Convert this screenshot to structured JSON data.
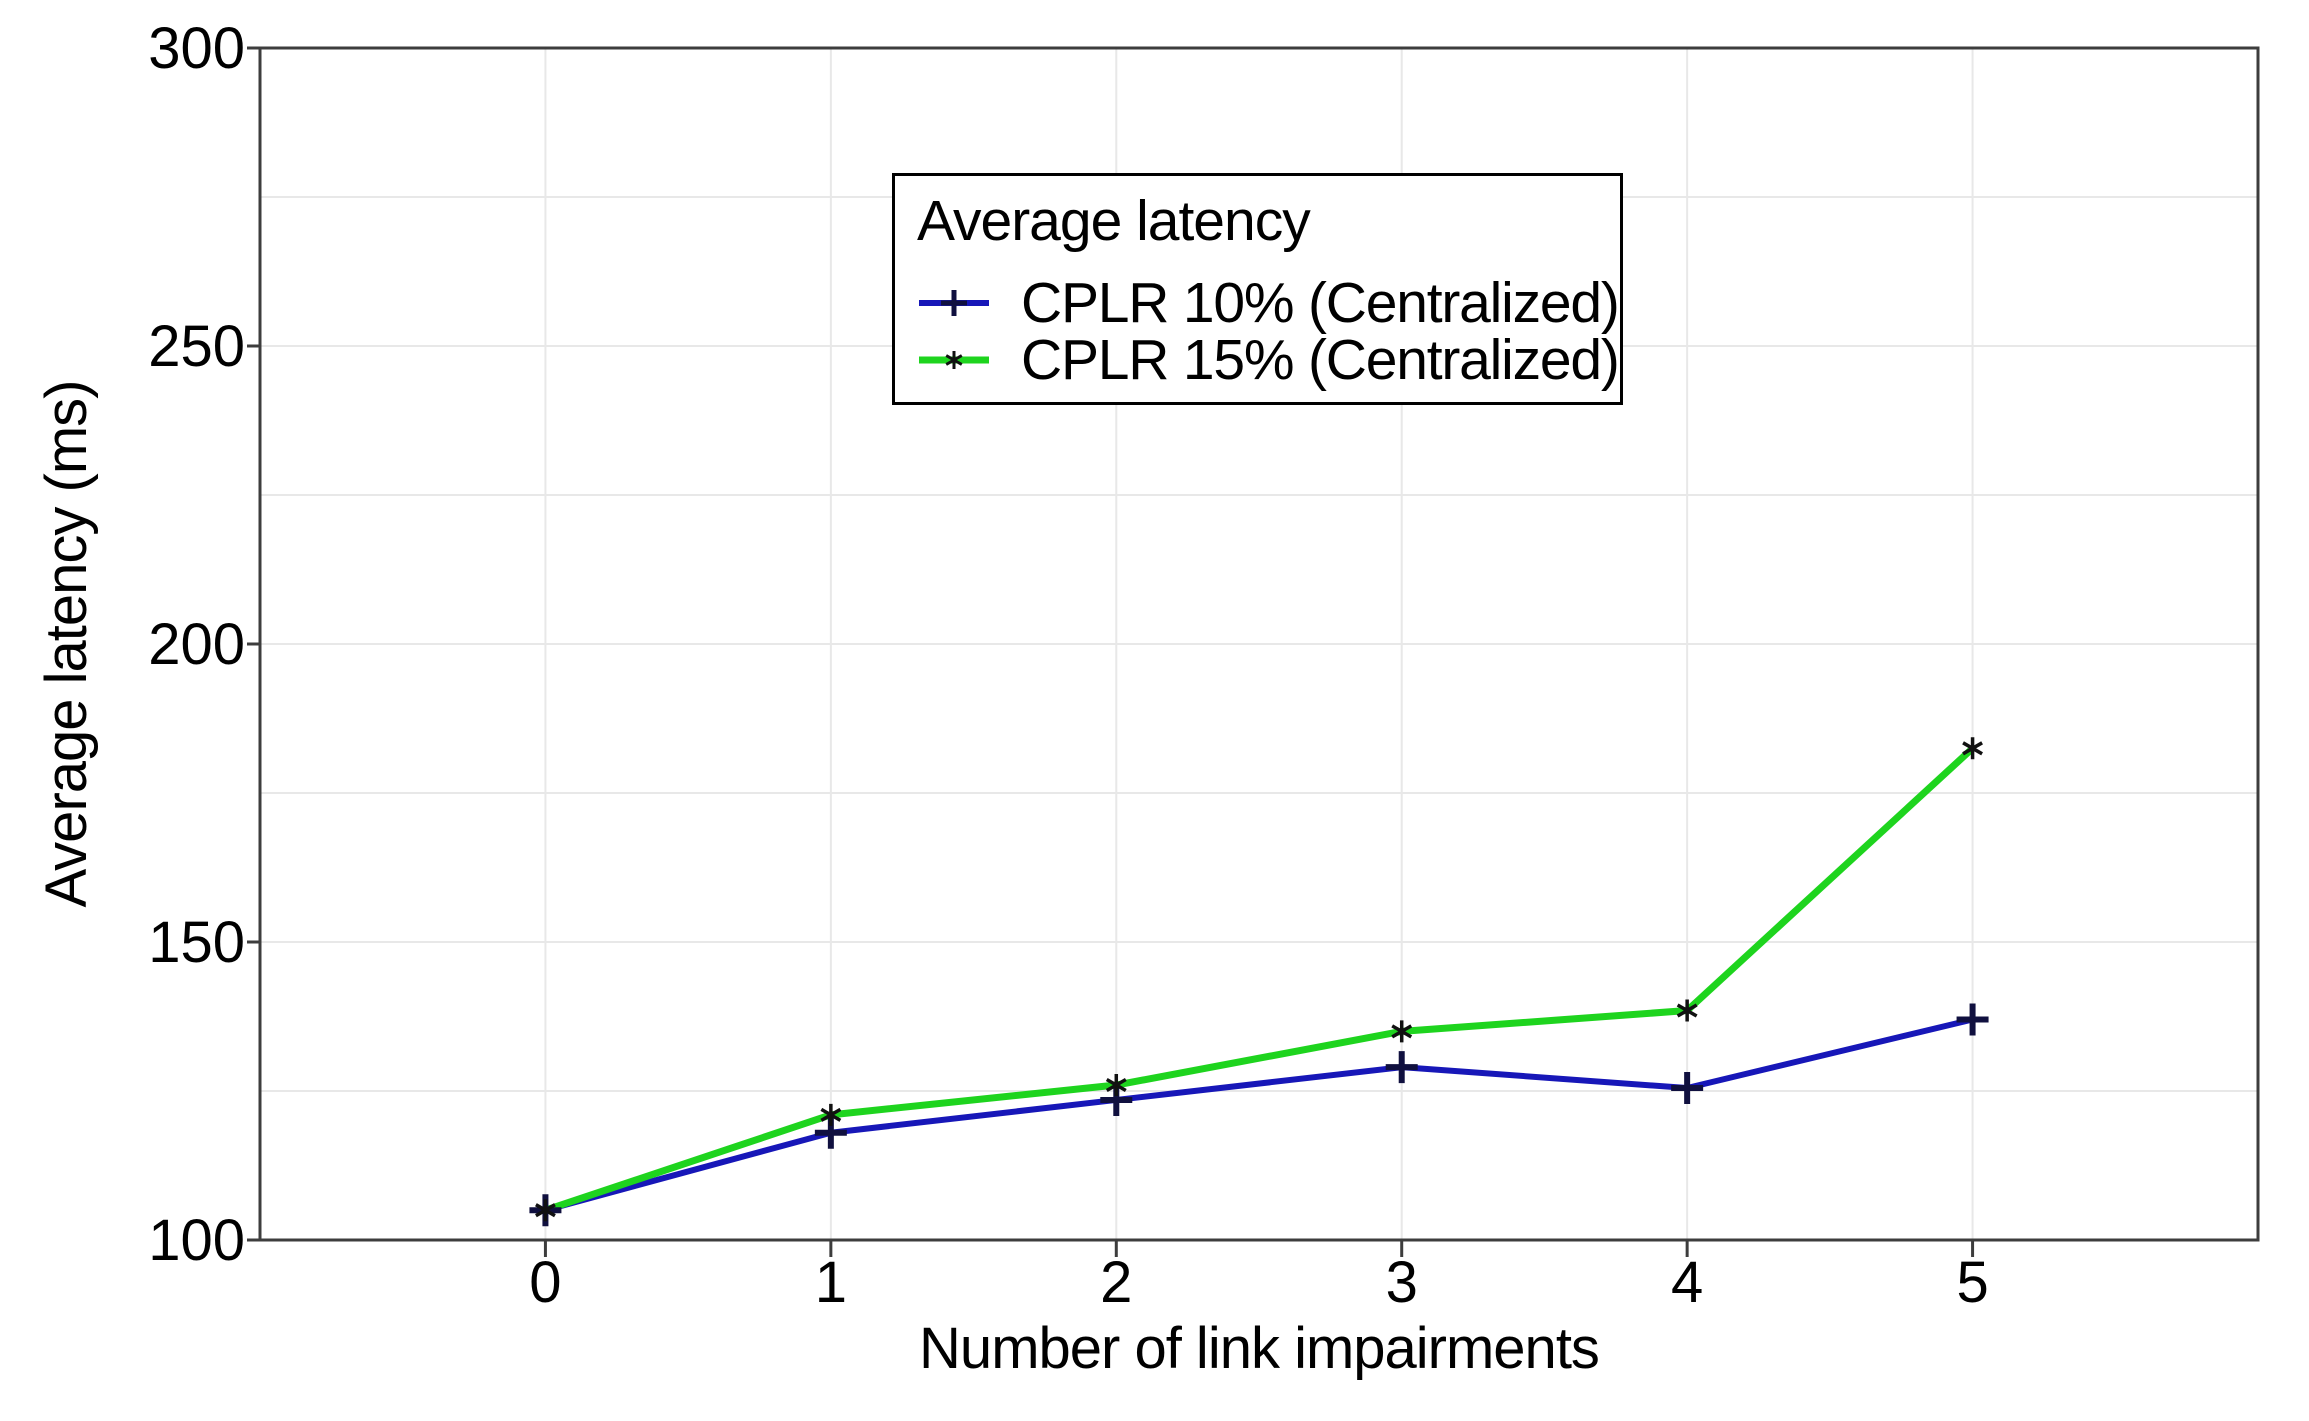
{
  "chart_data": {
    "type": "line",
    "title": "",
    "xlabel": "Number of link impairments",
    "ylabel": "Average latency (ms)",
    "xlim": [
      -1,
      6
    ],
    "ylim": [
      100,
      300
    ],
    "xticks": [
      0,
      1,
      2,
      3,
      4,
      5
    ],
    "yticks": [
      100,
      150,
      200,
      250,
      300
    ],
    "y_minor_step": 25,
    "grid": true,
    "legend_position": "top-center",
    "background_color": "#ffffff",
    "grid_color": "#e8e8e8",
    "axis_color": "#3d3d3d",
    "text_color": "#000000",
    "x": [
      0,
      1,
      2,
      3,
      4,
      5
    ],
    "legend": {
      "title": "Average latency"
    },
    "series": [
      {
        "name": "CPLR 10% (Centralized)",
        "color": "#1717b8",
        "marker": "plus",
        "marker_color": "#10103f",
        "values": [
          105,
          118,
          123.5,
          129,
          125.5,
          137
        ]
      },
      {
        "name": "CPLR 15% (Centralized)",
        "color": "#1ed41e",
        "marker": "asterisk",
        "marker_color": "#111111",
        "values": [
          105,
          121,
          126,
          135,
          138.5,
          182.5
        ]
      }
    ]
  }
}
